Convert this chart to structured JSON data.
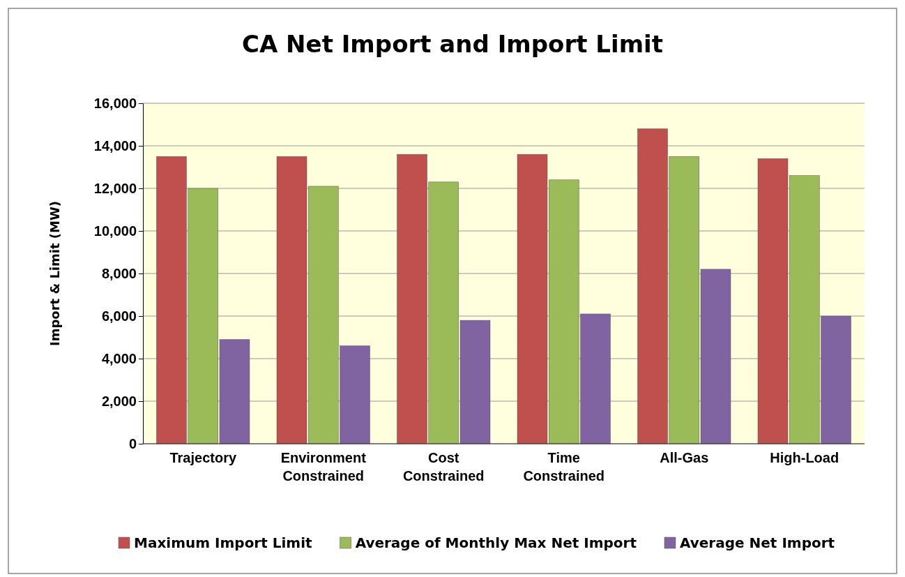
{
  "chart_data": {
    "type": "bar",
    "title": "CA Net Import and Import Limit",
    "ylabel": "Import & Limit (MW)",
    "categories": [
      "Trajectory",
      "Environment Constrained",
      "Cost Constrained",
      "Time Constrained",
      "All-Gas",
      "High-Load"
    ],
    "series": [
      {
        "name": "Maximum Import Limit",
        "color": "#c0504d",
        "values": [
          13500,
          13500,
          13600,
          13600,
          14800,
          13400
        ]
      },
      {
        "name": "Average of Monthly Max Net Import",
        "color": "#9bbb59",
        "values": [
          12000,
          12100,
          12300,
          12400,
          13500,
          12600
        ]
      },
      {
        "name": "Average Net Import",
        "color": "#8064a2",
        "values": [
          4900,
          4600,
          5800,
          6100,
          8200,
          6000
        ]
      }
    ],
    "ylim": [
      0,
      16000
    ],
    "yticks": [
      {
        "value": 0,
        "label": "0"
      },
      {
        "value": 2000,
        "label": "2,000"
      },
      {
        "value": 4000,
        "label": "4,000"
      },
      {
        "value": 6000,
        "label": "6,000"
      },
      {
        "value": 8000,
        "label": "8,000"
      },
      {
        "value": 10000,
        "label": "10,000"
      },
      {
        "value": 12000,
        "label": "12,000"
      },
      {
        "value": 14000,
        "label": "14,000"
      },
      {
        "value": 16000,
        "label": "16,000"
      }
    ],
    "grid": "y",
    "legend": "bottom"
  }
}
